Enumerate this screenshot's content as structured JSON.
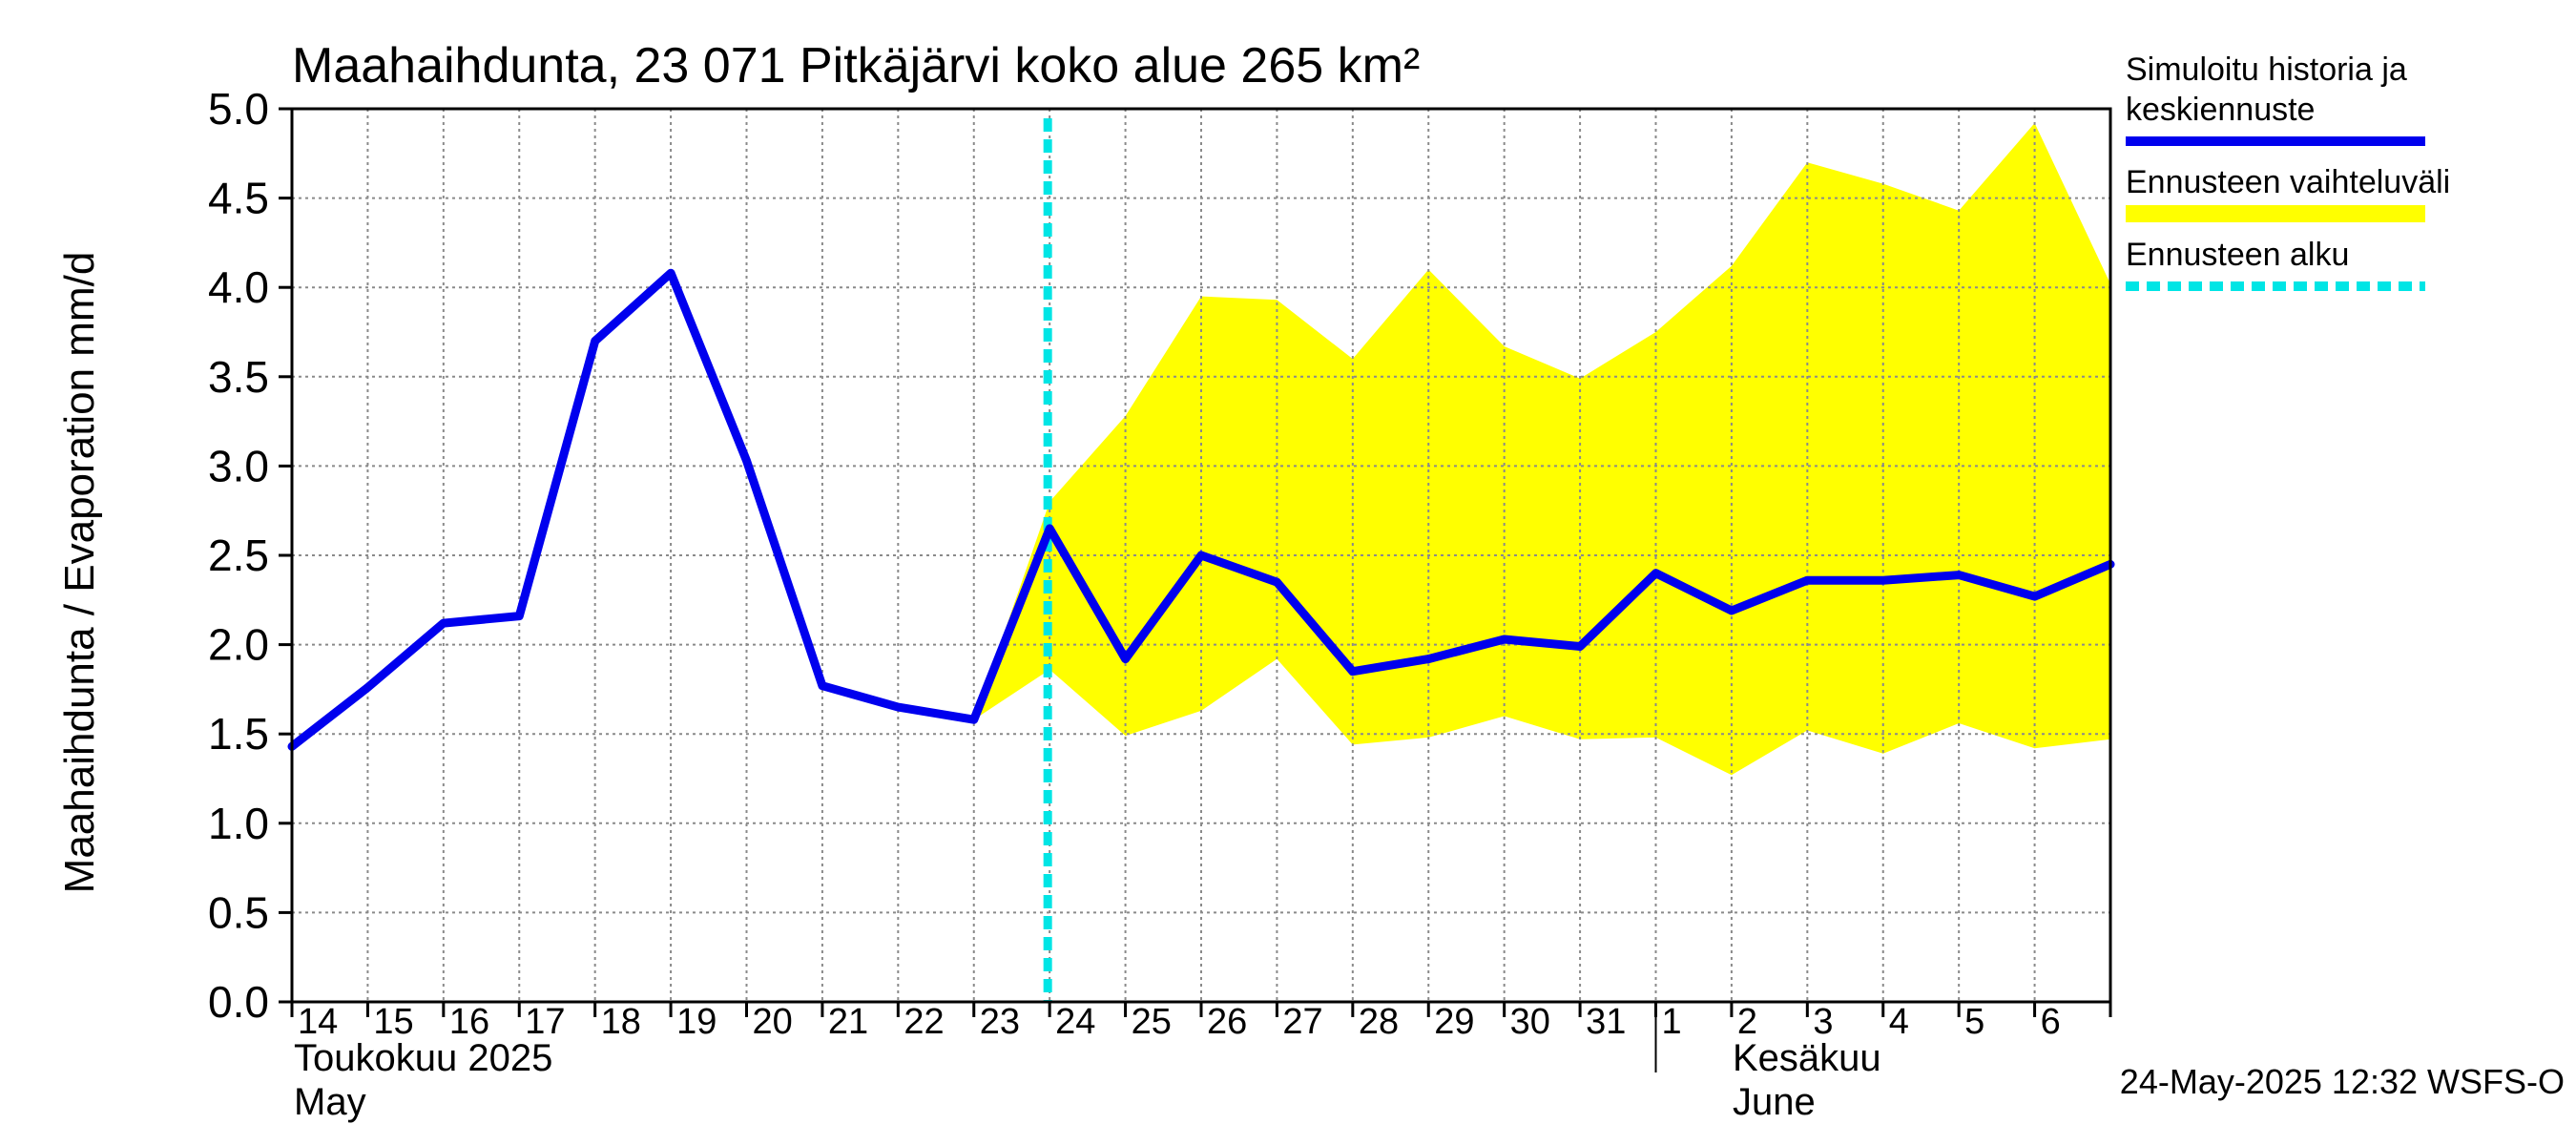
{
  "chart_data": {
    "type": "area",
    "title": "Maahaihdunta, 23 071 Pitkäjärvi koko alue 265 km²",
    "ylabel": "Maahaihdunta / Evaporation   mm/d",
    "ylim": [
      0,
      5
    ],
    "yticks": [
      "0.0",
      "0.5",
      "1.0",
      "1.5",
      "2.0",
      "2.5",
      "3.0",
      "3.5",
      "4.0",
      "4.5",
      "5.0"
    ],
    "grid": true,
    "x": [
      "14",
      "15",
      "16",
      "17",
      "18",
      "19",
      "20",
      "21",
      "22",
      "23",
      "24",
      "25",
      "26",
      "27",
      "28",
      "29",
      "30",
      "31",
      "1",
      "2",
      "3",
      "4",
      "5",
      "6",
      "7"
    ],
    "xtick_labels": [
      "14",
      "15",
      "16",
      "17",
      "18",
      "19",
      "20",
      "21",
      "22",
      "23",
      "24",
      "25",
      "26",
      "27",
      "28",
      "29",
      "30",
      "31",
      "1",
      "2",
      "3",
      "4",
      "5",
      "6"
    ],
    "month_labels": {
      "may_fi": "Toukokuu  2025",
      "may_en": "May",
      "june_fi": "Kesäkuu",
      "june_en": "June"
    },
    "series": [
      {
        "name": "Simuloitu historia ja keskiennuste",
        "color": "#0000ee",
        "values": [
          1.43,
          1.76,
          2.12,
          2.16,
          3.7,
          4.08,
          3.03,
          1.77,
          1.65,
          1.58,
          2.65,
          1.92,
          2.5,
          2.35,
          1.85,
          1.92,
          2.03,
          1.99,
          2.4,
          2.19,
          2.36,
          2.36,
          2.39,
          2.27,
          2.45
        ]
      },
      {
        "name": "Ennusteen vaihteluväli",
        "color": "#ffff00",
        "x_start": "23",
        "upper": [
          1.58,
          2.8,
          3.28,
          3.95,
          3.93,
          3.6,
          4.1,
          3.67,
          3.49,
          3.75,
          4.12,
          4.7,
          4.58,
          4.43,
          4.92,
          4.02
        ],
        "lower": [
          1.58,
          1.86,
          1.49,
          1.63,
          1.92,
          1.44,
          1.48,
          1.6,
          1.47,
          1.48,
          1.27,
          1.52,
          1.39,
          1.56,
          1.42,
          1.47
        ]
      }
    ],
    "forecast_start": {
      "name": "Ennusteen alku",
      "x": "24",
      "color": "#00e5e5"
    },
    "legend": {
      "placement": "right",
      "entries": [
        {
          "lines": [
            "Simuloitu historia ja",
            "keskiennuste"
          ],
          "color": "#0000ee",
          "style": "solid"
        },
        {
          "lines": [
            "Ennusteen vaihteluväli"
          ],
          "color": "#ffff00",
          "style": "solid"
        },
        {
          "lines": [
            "Ennusteen alku"
          ],
          "color": "#00e5e5",
          "style": "dashed"
        }
      ]
    },
    "timestamp": "24-May-2025 12:32 WSFS-O"
  }
}
